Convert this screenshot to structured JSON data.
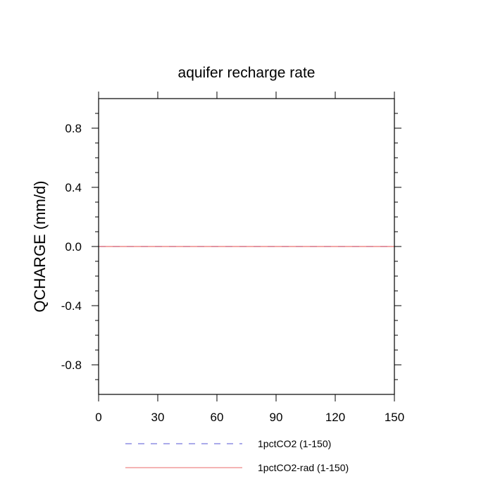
{
  "chart_data": {
    "type": "line",
    "title": "aquifer recharge rate",
    "xlabel": "",
    "ylabel": "QCHARGE  (mm/d)",
    "xlim": [
      0,
      150
    ],
    "ylim": [
      -1,
      1
    ],
    "x_ticks": [
      0,
      30,
      60,
      90,
      120,
      150
    ],
    "x_tick_labels": [
      "0",
      "30",
      "60",
      "90",
      "120",
      "150"
    ],
    "y_ticks": [
      -0.8,
      -0.4,
      0.0,
      0.4,
      0.8
    ],
    "y_tick_labels": [
      "-0.8",
      "-0.4",
      "0.0",
      "0.4",
      "0.8"
    ],
    "grid": false,
    "legend_position": "bottom",
    "series": [
      {
        "name": "1pctCO2 (1-150)",
        "color": "#7777dd",
        "dash": "dashed",
        "x": [
          0,
          150
        ],
        "y": [
          0,
          0
        ]
      },
      {
        "name": "1pctCO2-rad (1-150)",
        "color": "#ee8888",
        "dash": "solid",
        "x": [
          0,
          150
        ],
        "y": [
          0,
          0
        ]
      }
    ]
  }
}
